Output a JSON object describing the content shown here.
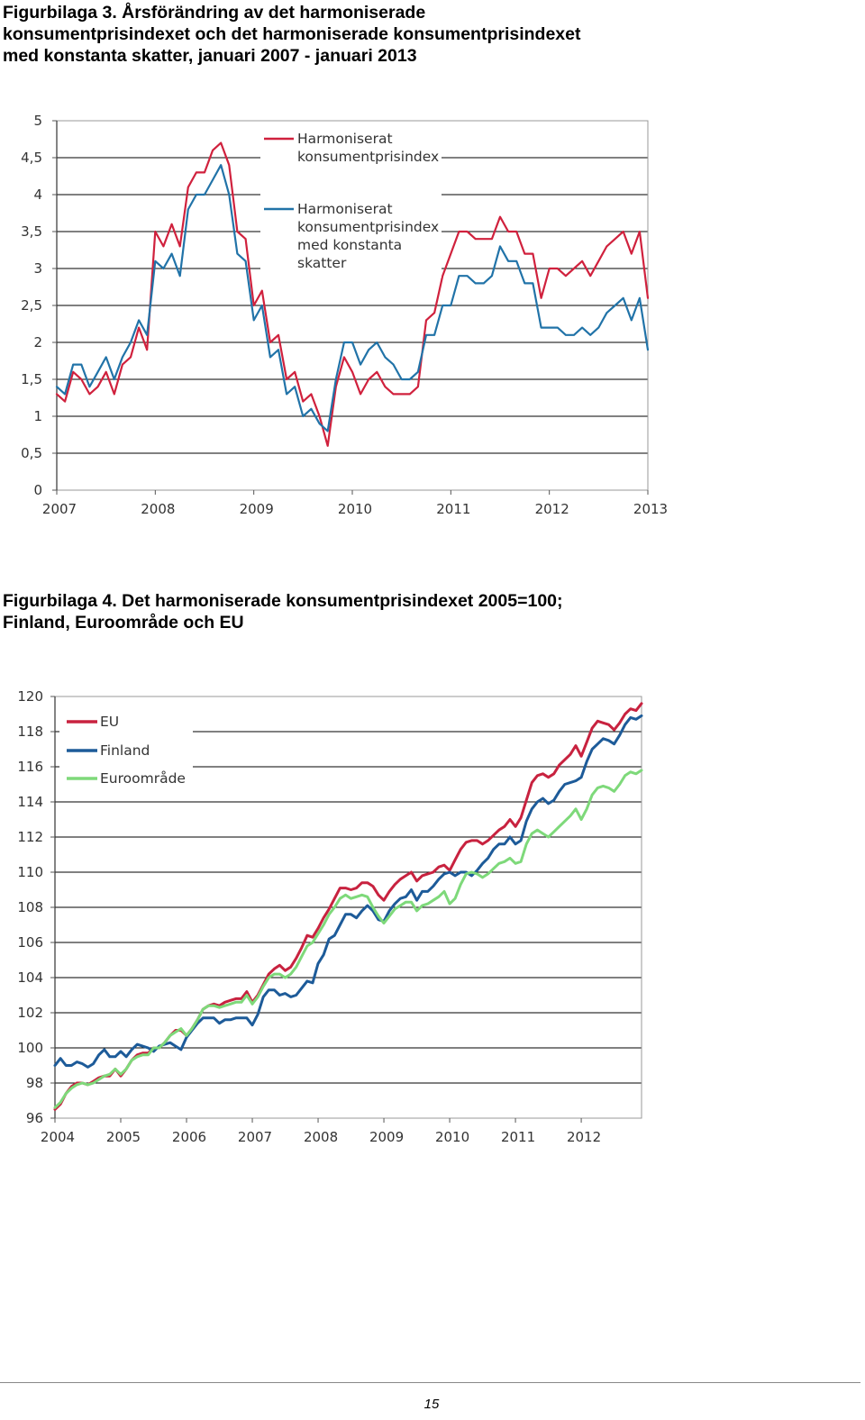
{
  "page": {
    "figure3_title": "Figurbilaga 3. Årsförändring av det harmoniserade\nkonsumentprisindexet och det harmoniserade konsumentprisindexet\nmed konstanta skatter, januari 2007 - januari 2013",
    "figure4_title": "Figurbilaga 4. Det harmoniserade konsumentprisindexet 2005=100;\nFinland, Euroområde och EU",
    "page_number": "15"
  },
  "chart_data": [
    {
      "type": "line",
      "title": "",
      "xlabel": "",
      "ylabel": "",
      "x_start": "2007-01",
      "x_step": "month",
      "x_ticks": [
        "2007",
        "2008",
        "2009",
        "2010",
        "2011",
        "2012",
        "2013"
      ],
      "y_ticks": [
        "0",
        "0,5",
        "1",
        "1,5",
        "2",
        "2,5",
        "3",
        "3,5",
        "4",
        "4,5",
        "5"
      ],
      "ylim": [
        0,
        5
      ],
      "grid": "horizontal",
      "legend_position": "top-left inside",
      "series": [
        {
          "name": "Harmoniserat konsumentprisindex",
          "color": "#d0213d",
          "values": [
            1.3,
            1.2,
            1.6,
            1.5,
            1.3,
            1.4,
            1.6,
            1.3,
            1.7,
            1.8,
            2.2,
            1.9,
            3.5,
            3.3,
            3.6,
            3.3,
            4.1,
            4.3,
            4.3,
            4.6,
            4.7,
            4.4,
            3.5,
            3.4,
            2.5,
            2.7,
            2.0,
            2.1,
            1.5,
            1.6,
            1.2,
            1.3,
            1.0,
            0.6,
            1.4,
            1.8,
            1.6,
            1.3,
            1.5,
            1.6,
            1.4,
            1.3,
            1.3,
            1.3,
            1.4,
            2.3,
            2.4,
            2.9,
            3.2,
            3.5,
            3.5,
            3.4,
            3.4,
            3.4,
            3.7,
            3.5,
            3.5,
            3.2,
            3.2,
            2.6,
            3.0,
            3.0,
            2.9,
            3.0,
            3.1,
            2.9,
            3.1,
            3.3,
            3.4,
            3.5,
            3.2,
            3.5,
            2.6
          ]
        },
        {
          "name": "Harmoniserat konsumentprisindex med konstanta skatter",
          "color": "#2173a8",
          "values": [
            1.4,
            1.3,
            1.7,
            1.7,
            1.4,
            1.6,
            1.8,
            1.5,
            1.8,
            2.0,
            2.3,
            2.1,
            3.1,
            3.0,
            3.2,
            2.9,
            3.8,
            4.0,
            4.0,
            4.2,
            4.4,
            4.0,
            3.2,
            3.1,
            2.3,
            2.5,
            1.8,
            1.9,
            1.3,
            1.4,
            1.0,
            1.1,
            0.9,
            0.8,
            1.5,
            2.0,
            2.0,
            1.7,
            1.9,
            2.0,
            1.8,
            1.7,
            1.5,
            1.5,
            1.6,
            2.1,
            2.1,
            2.5,
            2.5,
            2.9,
            2.9,
            2.8,
            2.8,
            2.9,
            3.3,
            3.1,
            3.1,
            2.8,
            2.8,
            2.2,
            2.2,
            2.2,
            2.1,
            2.1,
            2.2,
            2.1,
            2.2,
            2.4,
            2.5,
            2.6,
            2.3,
            2.6,
            1.9
          ]
        }
      ]
    },
    {
      "type": "line",
      "title": "",
      "xlabel": "",
      "ylabel": "",
      "x_start": "2004-01",
      "x_step": "month",
      "x_ticks": [
        "2004",
        "2005",
        "2006",
        "2007",
        "2008",
        "2009",
        "2010",
        "2011",
        "2012"
      ],
      "y_ticks": [
        "96",
        "98",
        "100",
        "102",
        "104",
        "106",
        "108",
        "110",
        "112",
        "114",
        "116",
        "118",
        "120"
      ],
      "ylim": [
        96,
        120
      ],
      "grid": "horizontal",
      "legend_position": "top-left inside",
      "series": [
        {
          "name": "EU",
          "color": "#c8223f",
          "values": [
            96.5,
            96.8,
            97.4,
            97.8,
            98.0,
            98.0,
            97.9,
            98.1,
            98.3,
            98.4,
            98.4,
            98.8,
            98.4,
            98.8,
            99.3,
            99.6,
            99.7,
            99.7,
            100.0,
            100.0,
            100.3,
            100.7,
            101.0,
            101.0,
            100.7,
            101.1,
            101.6,
            102.2,
            102.4,
            102.5,
            102.4,
            102.6,
            102.7,
            102.8,
            102.8,
            103.2,
            102.6,
            103.0,
            103.6,
            104.2,
            104.5,
            104.7,
            104.4,
            104.6,
            105.1,
            105.7,
            106.4,
            106.3,
            106.8,
            107.4,
            107.9,
            108.5,
            109.1,
            109.1,
            109.0,
            109.1,
            109.4,
            109.4,
            109.2,
            108.7,
            108.4,
            108.9,
            109.3,
            109.6,
            109.8,
            110.0,
            109.5,
            109.8,
            109.9,
            110.0,
            110.3,
            110.4,
            110.1,
            110.7,
            111.3,
            111.7,
            111.8,
            111.8,
            111.6,
            111.8,
            112.1,
            112.4,
            112.6,
            113.0,
            112.6,
            113.1,
            114.1,
            115.1,
            115.5,
            115.6,
            115.4,
            115.6,
            116.1,
            116.4,
            116.7,
            117.2,
            116.6,
            117.4,
            118.2,
            118.6,
            118.5,
            118.4,
            118.1,
            118.5,
            119.0,
            119.3,
            119.2,
            119.6
          ]
        },
        {
          "name": "Finland",
          "color": "#1d5b99",
          "values": [
            99.0,
            99.4,
            99.0,
            99.0,
            99.2,
            99.1,
            98.9,
            99.1,
            99.6,
            99.9,
            99.5,
            99.5,
            99.8,
            99.5,
            99.9,
            100.2,
            100.1,
            100.0,
            99.8,
            100.1,
            100.2,
            100.3,
            100.1,
            99.9,
            100.6,
            101.0,
            101.4,
            101.7,
            101.7,
            101.7,
            101.4,
            101.6,
            101.6,
            101.7,
            101.7,
            101.7,
            101.3,
            101.9,
            102.9,
            103.3,
            103.3,
            103.0,
            103.1,
            102.9,
            103.0,
            103.4,
            103.8,
            103.7,
            104.8,
            105.3,
            106.2,
            106.4,
            107.0,
            107.6,
            107.6,
            107.4,
            107.8,
            108.1,
            107.8,
            107.3,
            107.2,
            107.8,
            108.2,
            108.5,
            108.6,
            109.0,
            108.4,
            108.9,
            108.9,
            109.2,
            109.6,
            109.9,
            110.0,
            109.8,
            110.0,
            110.0,
            109.8,
            110.1,
            110.5,
            110.8,
            111.3,
            111.6,
            111.6,
            112.0,
            111.6,
            111.8,
            112.9,
            113.6,
            114.0,
            114.2,
            113.9,
            114.1,
            114.6,
            115.0,
            115.1,
            115.2,
            115.4,
            116.3,
            117.0,
            117.3,
            117.6,
            117.5,
            117.3,
            117.8,
            118.4,
            118.8,
            118.7,
            118.9
          ]
        },
        {
          "name": "Euroområde",
          "color": "#7ed97a",
          "values": [
            96.6,
            96.9,
            97.4,
            97.7,
            97.9,
            98.0,
            97.9,
            98.0,
            98.2,
            98.4,
            98.5,
            98.8,
            98.5,
            98.8,
            99.3,
            99.5,
            99.6,
            99.6,
            100.0,
            100.0,
            100.3,
            100.7,
            100.9,
            101.1,
            100.7,
            101.1,
            101.6,
            102.2,
            102.4,
            102.4,
            102.3,
            102.4,
            102.5,
            102.6,
            102.6,
            103.0,
            102.5,
            102.9,
            103.5,
            104.0,
            104.2,
            104.2,
            104.0,
            104.2,
            104.6,
            105.2,
            105.8,
            106.0,
            106.5,
            107.0,
            107.6,
            108.0,
            108.5,
            108.7,
            108.5,
            108.6,
            108.7,
            108.6,
            108.0,
            107.5,
            107.1,
            107.5,
            107.9,
            108.1,
            108.3,
            108.3,
            107.8,
            108.1,
            108.2,
            108.4,
            108.6,
            108.9,
            108.2,
            108.5,
            109.3,
            109.9,
            110.0,
            109.9,
            109.7,
            109.9,
            110.2,
            110.5,
            110.6,
            110.8,
            110.5,
            110.6,
            111.6,
            112.2,
            112.4,
            112.2,
            112.0,
            112.3,
            112.6,
            112.9,
            113.2,
            113.6,
            113.0,
            113.6,
            114.4,
            114.8,
            114.9,
            114.8,
            114.6,
            115.0,
            115.5,
            115.7,
            115.6,
            115.8
          ]
        }
      ]
    }
  ]
}
